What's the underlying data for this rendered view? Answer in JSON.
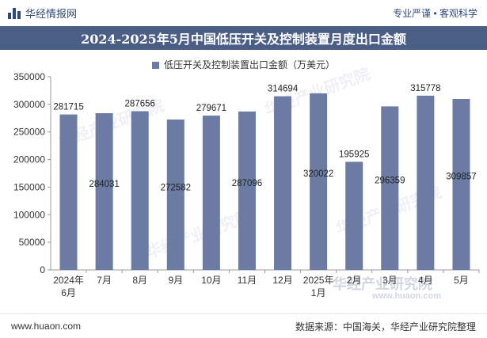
{
  "header": {
    "brand": "华经情报网",
    "tagline": "专业严谨 • 客观科学",
    "title": "2024-2025年5月中国低压开关及控制装置月度出口金额"
  },
  "footer": {
    "website": "www.huaon.com",
    "source": "数据来源：中国海关，华经产业研究院整理"
  },
  "watermark": "华经产业研究院",
  "watermark_url": "www.huaon.com",
  "colors": {
    "bar": "#6b7ba3",
    "title_bg": "#4b5e86"
  },
  "chart_data": {
    "type": "bar",
    "legend": "低压开关及控制装置出口金额（万美元）",
    "legend_position": "top-center",
    "grid": false,
    "ylim": [
      0,
      350000
    ],
    "yticks": [
      "0",
      "50000",
      "100000",
      "150000",
      "200000",
      "250000",
      "300000",
      "350000"
    ],
    "categories": [
      [
        "2024年",
        "6月"
      ],
      [
        "7月"
      ],
      [
        "8月"
      ],
      [
        "9月"
      ],
      [
        "10月"
      ],
      [
        "11月"
      ],
      [
        "12月"
      ],
      [
        "2025年",
        "1月"
      ],
      [
        "2月"
      ],
      [
        "3月"
      ],
      [
        "4月"
      ],
      [
        "5月"
      ]
    ],
    "values": [
      281715,
      284031,
      287656,
      272582,
      279671,
      287096,
      314694,
      320022,
      195925,
      296359,
      315778,
      309857
    ],
    "labels": [
      "281715",
      "284031",
      "287656",
      "272582",
      "279671",
      "287096",
      "314694",
      "320022",
      "195925",
      "296359",
      "315778",
      "309857"
    ],
    "label_inside": [
      false,
      true,
      false,
      true,
      false,
      true,
      false,
      true,
      false,
      true,
      false,
      true
    ]
  }
}
